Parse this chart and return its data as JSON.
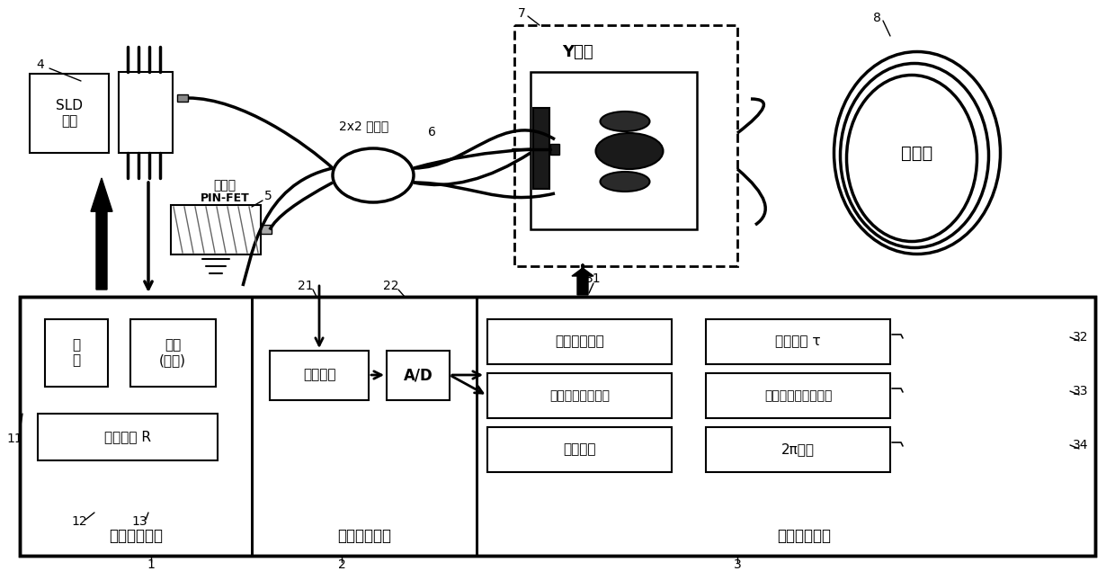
{
  "bg_color": "#ffffff",
  "lc": "#000000",
  "labels": {
    "SLD": "SLD\n光源",
    "detector_label": "探测器",
    "PIN_FET": "PIN-FET",
    "coupler": "2x2 耦合器",
    "Y_waveguide": "Y波导",
    "fiber_ring": "光纤环",
    "temp_ctrl": "温\n控",
    "drive_adj": "驱动\n(可调)",
    "drive_R": "驱动电阻 R",
    "sig_proc": "信号处理",
    "AD": "A/D",
    "sig_gen": "信号产生单元",
    "dsp": "数字信号处理单元",
    "num_calc": "数值解算",
    "transit_time": "波越时间 τ",
    "sample_freq": "采样频率，采样点数",
    "voltage_2pi": "2π电压",
    "mod1": "光源驱动模块",
    "mod2": "光电探测模块",
    "mod3": "数据处理模块"
  }
}
